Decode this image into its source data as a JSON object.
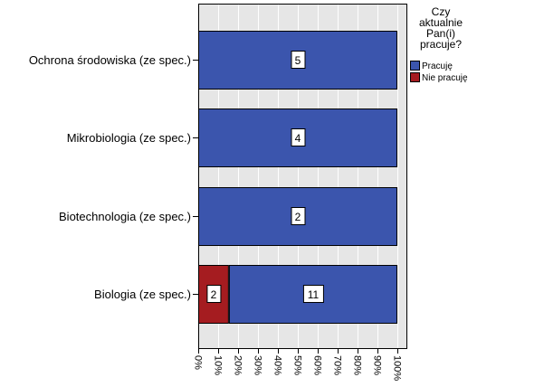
{
  "chart_data": {
    "type": "bar",
    "orientation": "horizontal",
    "stacked": true,
    "percent_scale": true,
    "categories": [
      "Ochrona środowiska (ze spec.)",
      "Mikrobiologia (ze spec.)",
      "Biotechnologia (ze spec.)",
      "Biologia (ze spec.)"
    ],
    "series": [
      {
        "name": "Nie pracuję",
        "color": "#a51c20",
        "values": [
          0,
          0,
          0,
          2
        ]
      },
      {
        "name": "Pracuję",
        "color": "#3b55ad",
        "values": [
          5,
          4,
          2,
          11
        ]
      }
    ],
    "data_labels": [
      [
        "",
        "5"
      ],
      [
        "",
        "4"
      ],
      [
        "",
        "2"
      ],
      [
        "2",
        "11"
      ]
    ],
    "xlim": [
      0,
      100
    ],
    "xticks": [
      "0%",
      "10%",
      "20%",
      "30%",
      "40%",
      "50%",
      "60%",
      "70%",
      "80%",
      "90%",
      "100%"
    ],
    "grid": true,
    "legend": {
      "title_lines": [
        "Czy",
        "aktualnie",
        "Pan(i)",
        "pracuje?"
      ],
      "position": "top-right",
      "entries": [
        {
          "name": "Pracuję",
          "color": "#3b55ad"
        },
        {
          "name": "Nie pracuję",
          "color": "#a51c20"
        }
      ]
    },
    "plot_background": "#e6e6e6"
  }
}
